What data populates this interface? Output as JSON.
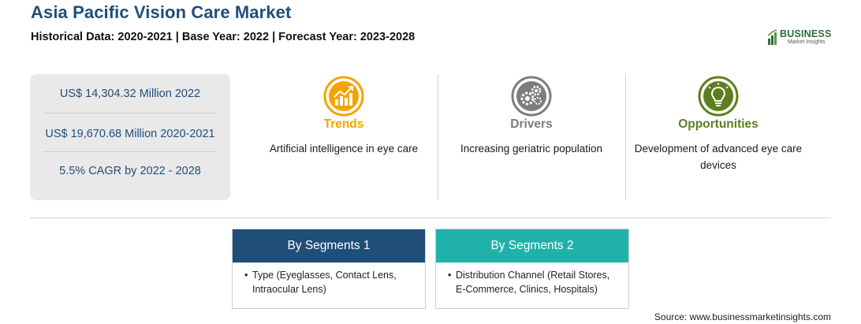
{
  "header": {
    "title": "Asia Pacific Vision Care Market",
    "subtitle": "Historical Data: 2020-2021 | Base Year: 2022 | Forecast Year: 2023-2028"
  },
  "logo": {
    "name": "BUSINESS",
    "sub": "Market Insights",
    "icon": "bar-chart-icon"
  },
  "stats": [
    "US$ 14,304.32 Million 2022",
    "US$ 19,670.68 Million 2020-2021",
    "5.5% CAGR by 2022 - 2028"
  ],
  "features": {
    "trends": {
      "title": "Trends",
      "description": "Artificial intelligence in eye care",
      "icon": "growth-chart-icon",
      "color": "#f5a300"
    },
    "drivers": {
      "title": "Drivers",
      "description": "Increasing geriatric population",
      "icon": "gears-icon",
      "color": "#7d7d7d"
    },
    "opportunities": {
      "title": "Opportunities",
      "description": "Development of advanced eye care devices",
      "icon": "lightbulb-icon",
      "color": "#5b7f1f"
    }
  },
  "segments": [
    {
      "title": "By Segments 1",
      "bullet": "•",
      "text": "Type (Eyeglasses, Contact Lens, Intraocular Lens)",
      "color": "#1f4e79"
    },
    {
      "title": "By Segments 2",
      "bullet": "•",
      "text": "Distribution Channel (Retail Stores, E-Commerce, Clinics, Hospitals)",
      "color": "#20b2aa"
    }
  ],
  "source": "Source: www.businessmarketinsights.com"
}
